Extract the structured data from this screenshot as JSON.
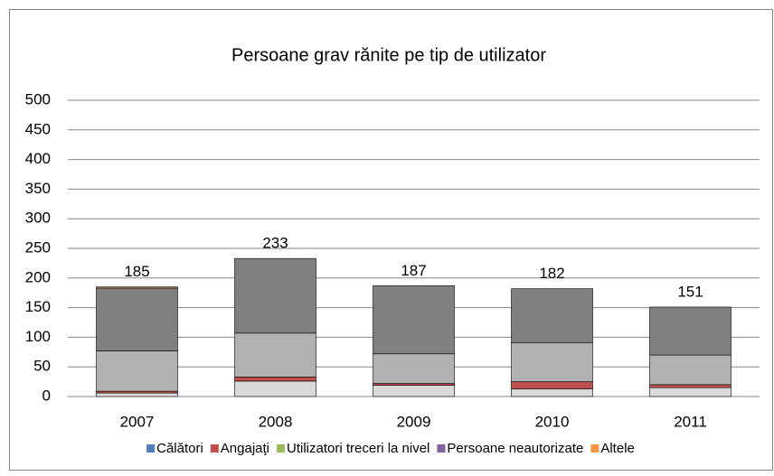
{
  "chart_data": {
    "type": "stacked-bar",
    "title": "Persoane grav rănite pe tip de utilizator",
    "categories": [
      "2007",
      "2008",
      "2009",
      "2010",
      "2011"
    ],
    "series": [
      {
        "name": "Călători",
        "color": "#d9d9d9",
        "legend_color": "#4f81bd",
        "values": [
          6,
          26,
          19,
          13,
          15
        ]
      },
      {
        "name": "Angajaţi",
        "color": "#c0504d",
        "legend_color": "#c0504d",
        "values": [
          3,
          7,
          3,
          12,
          5
        ]
      },
      {
        "name": "Utilizatori treceri la nivel",
        "color": "#b2b2b2",
        "legend_color": "#9bbb59",
        "values": [
          68,
          74,
          50,
          66,
          50
        ]
      },
      {
        "name": "Persoane neautorizate",
        "color": "#808080",
        "legend_color": "#8064a2",
        "values": [
          106,
          126,
          115,
          91,
          81
        ]
      },
      {
        "name": "Altele",
        "color": "#f79646",
        "legend_color": "#f79646",
        "values": [
          2,
          0,
          0,
          0,
          0
        ]
      }
    ],
    "totals": [
      185,
      233,
      187,
      182,
      151
    ],
    "ylim": [
      0,
      500
    ],
    "yticks": [
      0,
      50,
      100,
      150,
      200,
      250,
      300,
      350,
      400,
      450,
      500
    ],
    "grid": true,
    "legend": "bottom"
  }
}
